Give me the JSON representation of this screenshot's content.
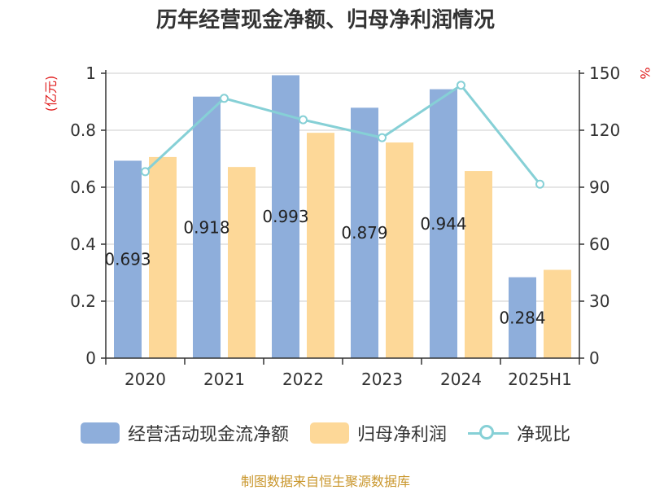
{
  "chart_data": {
    "type": "bar",
    "title": "历年经营现金净额、归母净利润情况",
    "categories": [
      "2020",
      "2021",
      "2022",
      "2023",
      "2024",
      "2025H1"
    ],
    "left_axis_label": "(亿元)",
    "right_axis_label": "%",
    "ylim": [
      0,
      1
    ],
    "y_ticks": [
      "0",
      "0.2",
      "0.4",
      "0.6",
      "0.8",
      "1"
    ],
    "y2lim": [
      0,
      150
    ],
    "y2_ticks": [
      "0",
      "30",
      "60",
      "90",
      "120",
      "150"
    ],
    "series": [
      {
        "name": "经营活动现金流净额",
        "type": "bar",
        "axis": "left",
        "color": "#8eaedb",
        "values": [
          0.693,
          0.918,
          0.993,
          0.879,
          0.944,
          0.284
        ],
        "labels": [
          "0.693",
          "0.918",
          "0.993",
          "0.879",
          "0.944",
          "0.284"
        ]
      },
      {
        "name": "归母净利润",
        "type": "bar",
        "axis": "left",
        "color": "#fdd898",
        "values": [
          0.706,
          0.671,
          0.791,
          0.757,
          0.657,
          0.31
        ]
      },
      {
        "name": "净现比",
        "type": "line",
        "axis": "right",
        "color": "#86d0d6",
        "values": [
          98.2,
          136.8,
          125.5,
          116.1,
          143.7,
          91.6
        ]
      }
    ],
    "grid": true,
    "legend": "bottom"
  },
  "source_text": "制图数据来自恒生聚源数据库"
}
